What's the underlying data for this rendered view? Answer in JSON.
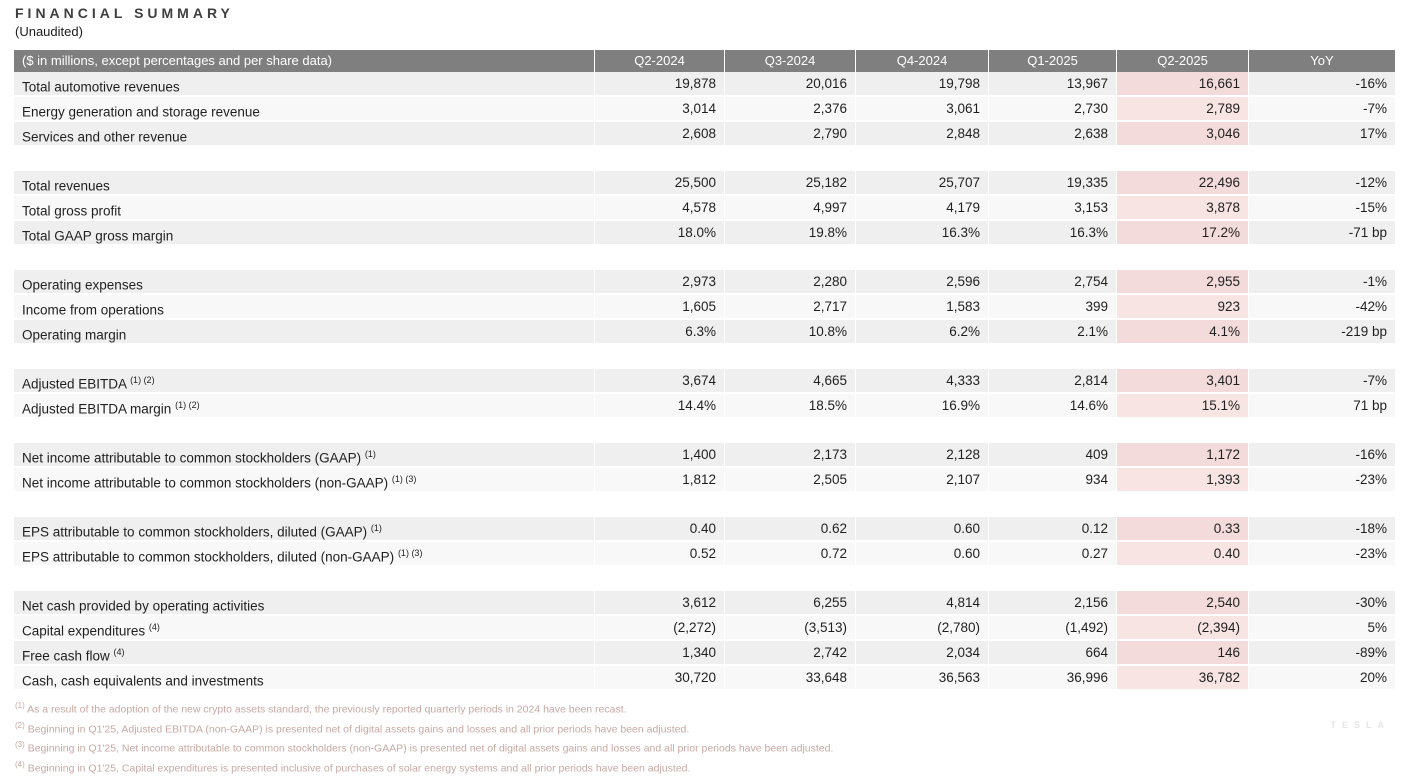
{
  "page": {
    "title": "FINANCIAL SUMMARY",
    "subtitle": "(Unaudited)"
  },
  "colors": {
    "header_bg": "#7f7f7f",
    "header_text": "#ffffff",
    "row_stripe_dark": "#efefef",
    "row_stripe_light": "#f8f8f8",
    "highlight_column_bg": "#f2dbda",
    "footnote_text": "#c7a9a4"
  },
  "table": {
    "header": {
      "label": "($ in millions, except percentages and per share data)",
      "columns": [
        "Q2-2024",
        "Q3-2024",
        "Q4-2024",
        "Q1-2025",
        "Q2-2025",
        "YoY"
      ]
    },
    "highlighted_column": "Q2-2025",
    "groups": [
      {
        "rows": [
          {
            "label": "Total automotive revenues",
            "sup": "",
            "values": [
              "19,878",
              "20,016",
              "19,798",
              "13,967",
              "16,661",
              "-16%"
            ]
          },
          {
            "label": "Energy generation and storage revenue",
            "sup": "",
            "values": [
              "3,014",
              "2,376",
              "3,061",
              "2,730",
              "2,789",
              "-7%"
            ]
          },
          {
            "label": "Services and other revenue",
            "sup": "",
            "values": [
              "2,608",
              "2,790",
              "2,848",
              "2,638",
              "3,046",
              "17%"
            ]
          }
        ]
      },
      {
        "rows": [
          {
            "label": "Total revenues",
            "sup": "",
            "values": [
              "25,500",
              "25,182",
              "25,707",
              "19,335",
              "22,496",
              "-12%"
            ]
          },
          {
            "label": "Total gross profit",
            "sup": "",
            "values": [
              "4,578",
              "4,997",
              "4,179",
              "3,153",
              "3,878",
              "-15%"
            ]
          },
          {
            "label": "Total GAAP gross margin",
            "sup": "",
            "values": [
              "18.0%",
              "19.8%",
              "16.3%",
              "16.3%",
              "17.2%",
              "-71 bp"
            ]
          }
        ]
      },
      {
        "rows": [
          {
            "label": "Operating expenses",
            "sup": "",
            "values": [
              "2,973",
              "2,280",
              "2,596",
              "2,754",
              "2,955",
              "-1%"
            ]
          },
          {
            "label": "Income from operations",
            "sup": "",
            "values": [
              "1,605",
              "2,717",
              "1,583",
              "399",
              "923",
              "-42%"
            ]
          },
          {
            "label": "Operating margin",
            "sup": "",
            "values": [
              "6.3%",
              "10.8%",
              "6.2%",
              "2.1%",
              "4.1%",
              "-219 bp"
            ]
          }
        ]
      },
      {
        "rows": [
          {
            "label": "Adjusted EBITDA ",
            "sup": "(1) (2)",
            "values": [
              "3,674",
              "4,665",
              "4,333",
              "2,814",
              "3,401",
              "-7%"
            ]
          },
          {
            "label": "Adjusted EBITDA margin ",
            "sup": "(1) (2)",
            "values": [
              "14.4%",
              "18.5%",
              "16.9%",
              "14.6%",
              "15.1%",
              "71 bp"
            ]
          }
        ]
      },
      {
        "rows": [
          {
            "label": "Net income attributable to common stockholders (GAAP) ",
            "sup": "(1)",
            "values": [
              "1,400",
              "2,173",
              "2,128",
              "409",
              "1,172",
              "-16%"
            ]
          },
          {
            "label": "Net income attributable to common stockholders (non-GAAP) ",
            "sup": "(1) (3)",
            "values": [
              "1,812",
              "2,505",
              "2,107",
              "934",
              "1,393",
              "-23%"
            ]
          }
        ]
      },
      {
        "rows": [
          {
            "label": "EPS attributable to common stockholders, diluted (GAAP) ",
            "sup": "(1)",
            "values": [
              "0.40",
              "0.62",
              "0.60",
              "0.12",
              "0.33",
              "-18%"
            ]
          },
          {
            "label": "EPS attributable to common stockholders, diluted (non-GAAP) ",
            "sup": "(1) (3)",
            "values": [
              "0.52",
              "0.72",
              "0.60",
              "0.27",
              "0.40",
              "-23%"
            ]
          }
        ]
      },
      {
        "rows": [
          {
            "label": "Net cash provided by operating activities",
            "sup": "",
            "values": [
              "3,612",
              "6,255",
              "4,814",
              "2,156",
              "2,540",
              "-30%"
            ]
          },
          {
            "label": "Capital expenditures ",
            "sup": "(4)",
            "values": [
              "(2,272)",
              "(3,513)",
              "(2,780)",
              "(1,492)",
              "(2,394)",
              "5%"
            ]
          },
          {
            "label": "Free cash flow ",
            "sup": "(4)",
            "values": [
              "1,340",
              "2,742",
              "2,034",
              "664",
              "146",
              "-89%"
            ]
          },
          {
            "label": "Cash, cash equivalents and investments",
            "sup": "",
            "values": [
              "30,720",
              "33,648",
              "36,563",
              "36,996",
              "36,782",
              "20%"
            ]
          }
        ]
      }
    ]
  },
  "footnotes": [
    {
      "marker": "(1)",
      "text": " As a result of the adoption of the new crypto assets standard, the previously reported quarterly periods in 2024 have been recast."
    },
    {
      "marker": "(2)",
      "text": " Beginning in Q1'25, Adjusted EBITDA (non-GAAP) is presented net of digital assets gains and losses and all prior periods have been adjusted."
    },
    {
      "marker": "(3)",
      "text": " Beginning in Q1'25, Net income attributable to common stockholders (non-GAAP) is presented net of digital assets gains and losses and all prior periods have been adjusted."
    },
    {
      "marker": "(4)",
      "text": " Beginning in Q1'25, Capital expenditures is presented inclusive of purchases of solar energy systems and all prior periods have been adjusted."
    }
  ],
  "watermark": "TESLA"
}
